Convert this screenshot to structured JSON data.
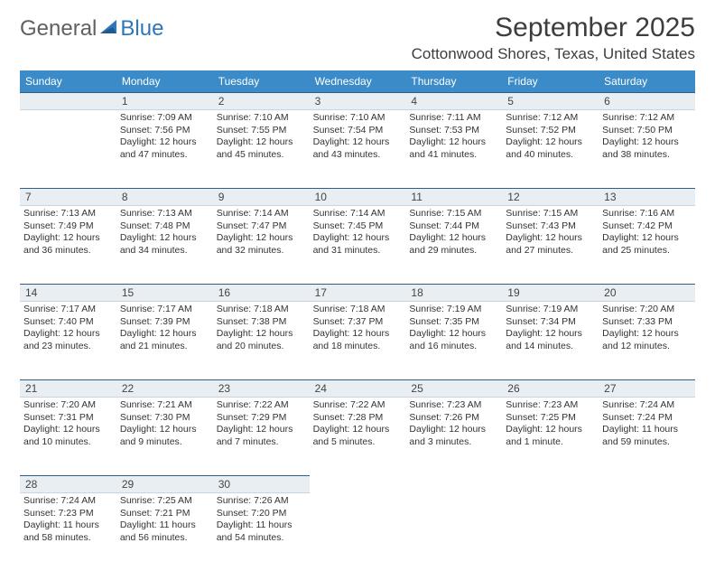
{
  "logo": {
    "general": "General",
    "blue": "Blue"
  },
  "header": {
    "month_title": "September 2025",
    "location": "Cottonwood Shores, Texas, United States"
  },
  "colors": {
    "header_bg": "#3b8bc9",
    "daynum_bg": "#e9eef3",
    "daynum_border_top": "#2d5f88",
    "logo_blue": "#2f77b8"
  },
  "weekdays": [
    "Sunday",
    "Monday",
    "Tuesday",
    "Wednesday",
    "Thursday",
    "Friday",
    "Saturday"
  ],
  "weeks": [
    [
      {
        "empty": true
      },
      {
        "n": "1",
        "sunrise": "Sunrise: 7:09 AM",
        "sunset": "Sunset: 7:56 PM",
        "daylight_a": "Daylight: 12 hours",
        "daylight_b": "and 47 minutes."
      },
      {
        "n": "2",
        "sunrise": "Sunrise: 7:10 AM",
        "sunset": "Sunset: 7:55 PM",
        "daylight_a": "Daylight: 12 hours",
        "daylight_b": "and 45 minutes."
      },
      {
        "n": "3",
        "sunrise": "Sunrise: 7:10 AM",
        "sunset": "Sunset: 7:54 PM",
        "daylight_a": "Daylight: 12 hours",
        "daylight_b": "and 43 minutes."
      },
      {
        "n": "4",
        "sunrise": "Sunrise: 7:11 AM",
        "sunset": "Sunset: 7:53 PM",
        "daylight_a": "Daylight: 12 hours",
        "daylight_b": "and 41 minutes."
      },
      {
        "n": "5",
        "sunrise": "Sunrise: 7:12 AM",
        "sunset": "Sunset: 7:52 PM",
        "daylight_a": "Daylight: 12 hours",
        "daylight_b": "and 40 minutes."
      },
      {
        "n": "6",
        "sunrise": "Sunrise: 7:12 AM",
        "sunset": "Sunset: 7:50 PM",
        "daylight_a": "Daylight: 12 hours",
        "daylight_b": "and 38 minutes."
      }
    ],
    [
      {
        "n": "7",
        "sunrise": "Sunrise: 7:13 AM",
        "sunset": "Sunset: 7:49 PM",
        "daylight_a": "Daylight: 12 hours",
        "daylight_b": "and 36 minutes."
      },
      {
        "n": "8",
        "sunrise": "Sunrise: 7:13 AM",
        "sunset": "Sunset: 7:48 PM",
        "daylight_a": "Daylight: 12 hours",
        "daylight_b": "and 34 minutes."
      },
      {
        "n": "9",
        "sunrise": "Sunrise: 7:14 AM",
        "sunset": "Sunset: 7:47 PM",
        "daylight_a": "Daylight: 12 hours",
        "daylight_b": "and 32 minutes."
      },
      {
        "n": "10",
        "sunrise": "Sunrise: 7:14 AM",
        "sunset": "Sunset: 7:45 PM",
        "daylight_a": "Daylight: 12 hours",
        "daylight_b": "and 31 minutes."
      },
      {
        "n": "11",
        "sunrise": "Sunrise: 7:15 AM",
        "sunset": "Sunset: 7:44 PM",
        "daylight_a": "Daylight: 12 hours",
        "daylight_b": "and 29 minutes."
      },
      {
        "n": "12",
        "sunrise": "Sunrise: 7:15 AM",
        "sunset": "Sunset: 7:43 PM",
        "daylight_a": "Daylight: 12 hours",
        "daylight_b": "and 27 minutes."
      },
      {
        "n": "13",
        "sunrise": "Sunrise: 7:16 AM",
        "sunset": "Sunset: 7:42 PM",
        "daylight_a": "Daylight: 12 hours",
        "daylight_b": "and 25 minutes."
      }
    ],
    [
      {
        "n": "14",
        "sunrise": "Sunrise: 7:17 AM",
        "sunset": "Sunset: 7:40 PM",
        "daylight_a": "Daylight: 12 hours",
        "daylight_b": "and 23 minutes."
      },
      {
        "n": "15",
        "sunrise": "Sunrise: 7:17 AM",
        "sunset": "Sunset: 7:39 PM",
        "daylight_a": "Daylight: 12 hours",
        "daylight_b": "and 21 minutes."
      },
      {
        "n": "16",
        "sunrise": "Sunrise: 7:18 AM",
        "sunset": "Sunset: 7:38 PM",
        "daylight_a": "Daylight: 12 hours",
        "daylight_b": "and 20 minutes."
      },
      {
        "n": "17",
        "sunrise": "Sunrise: 7:18 AM",
        "sunset": "Sunset: 7:37 PM",
        "daylight_a": "Daylight: 12 hours",
        "daylight_b": "and 18 minutes."
      },
      {
        "n": "18",
        "sunrise": "Sunrise: 7:19 AM",
        "sunset": "Sunset: 7:35 PM",
        "daylight_a": "Daylight: 12 hours",
        "daylight_b": "and 16 minutes."
      },
      {
        "n": "19",
        "sunrise": "Sunrise: 7:19 AM",
        "sunset": "Sunset: 7:34 PM",
        "daylight_a": "Daylight: 12 hours",
        "daylight_b": "and 14 minutes."
      },
      {
        "n": "20",
        "sunrise": "Sunrise: 7:20 AM",
        "sunset": "Sunset: 7:33 PM",
        "daylight_a": "Daylight: 12 hours",
        "daylight_b": "and 12 minutes."
      }
    ],
    [
      {
        "n": "21",
        "sunrise": "Sunrise: 7:20 AM",
        "sunset": "Sunset: 7:31 PM",
        "daylight_a": "Daylight: 12 hours",
        "daylight_b": "and 10 minutes."
      },
      {
        "n": "22",
        "sunrise": "Sunrise: 7:21 AM",
        "sunset": "Sunset: 7:30 PM",
        "daylight_a": "Daylight: 12 hours",
        "daylight_b": "and 9 minutes."
      },
      {
        "n": "23",
        "sunrise": "Sunrise: 7:22 AM",
        "sunset": "Sunset: 7:29 PM",
        "daylight_a": "Daylight: 12 hours",
        "daylight_b": "and 7 minutes."
      },
      {
        "n": "24",
        "sunrise": "Sunrise: 7:22 AM",
        "sunset": "Sunset: 7:28 PM",
        "daylight_a": "Daylight: 12 hours",
        "daylight_b": "and 5 minutes."
      },
      {
        "n": "25",
        "sunrise": "Sunrise: 7:23 AM",
        "sunset": "Sunset: 7:26 PM",
        "daylight_a": "Daylight: 12 hours",
        "daylight_b": "and 3 minutes."
      },
      {
        "n": "26",
        "sunrise": "Sunrise: 7:23 AM",
        "sunset": "Sunset: 7:25 PM",
        "daylight_a": "Daylight: 12 hours",
        "daylight_b": "and 1 minute."
      },
      {
        "n": "27",
        "sunrise": "Sunrise: 7:24 AM",
        "sunset": "Sunset: 7:24 PM",
        "daylight_a": "Daylight: 11 hours",
        "daylight_b": "and 59 minutes."
      }
    ],
    [
      {
        "n": "28",
        "sunrise": "Sunrise: 7:24 AM",
        "sunset": "Sunset: 7:23 PM",
        "daylight_a": "Daylight: 11 hours",
        "daylight_b": "and 58 minutes."
      },
      {
        "n": "29",
        "sunrise": "Sunrise: 7:25 AM",
        "sunset": "Sunset: 7:21 PM",
        "daylight_a": "Daylight: 11 hours",
        "daylight_b": "and 56 minutes."
      },
      {
        "n": "30",
        "sunrise": "Sunrise: 7:26 AM",
        "sunset": "Sunset: 7:20 PM",
        "daylight_a": "Daylight: 11 hours",
        "daylight_b": "and 54 minutes."
      },
      {
        "empty": true
      },
      {
        "empty": true
      },
      {
        "empty": true
      },
      {
        "empty": true
      }
    ]
  ]
}
